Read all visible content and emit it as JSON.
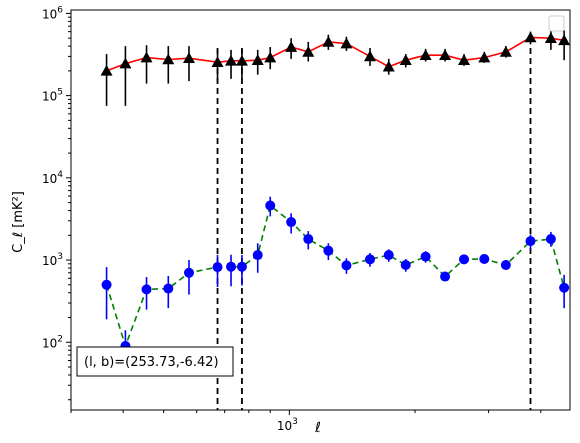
{
  "chart_data": {
    "type": "scatter",
    "title": "",
    "xlabel": "ℓ",
    "ylabel": "C_ℓ  [mK²]",
    "xscale": "log",
    "yscale": "log",
    "xlim": [
      300,
      4700
    ],
    "ylim": [
      15,
      1100000
    ],
    "x_tick_labels": [
      "10^3"
    ],
    "y_tick_labels": [
      "10^2",
      "10^3",
      "10^4",
      "10^5",
      "10^6"
    ],
    "annotation": "(l, b)=(253.73,-6.42)",
    "legend": "top-right",
    "grid": false,
    "vertical_lines_x": [
      673,
      770,
      3780
    ],
    "series": [
      {
        "color": "#ff0000",
        "marker": "triangle",
        "marker_color": "#000000",
        "linestyle": "solid",
        "points": [
          {
            "x": 365,
            "y": 200000,
            "lo": 75000,
            "hi": 320000
          },
          {
            "x": 405,
            "y": 245000,
            "lo": 75000,
            "hi": 400000
          },
          {
            "x": 455,
            "y": 290000,
            "lo": 140000,
            "hi": 410000
          },
          {
            "x": 513,
            "y": 275000,
            "lo": 140000,
            "hi": 400000
          },
          {
            "x": 575,
            "y": 285000,
            "lo": 150000,
            "hi": 400000
          },
          {
            "x": 673,
            "y": 255000,
            "lo": 150000,
            "hi": 360000
          },
          {
            "x": 725,
            "y": 265000,
            "lo": 160000,
            "hi": 360000
          },
          {
            "x": 770,
            "y": 265000,
            "lo": 160000,
            "hi": 360000
          },
          {
            "x": 840,
            "y": 270000,
            "lo": 180000,
            "hi": 360000
          },
          {
            "x": 900,
            "y": 290000,
            "lo": 210000,
            "hi": 390000
          },
          {
            "x": 1010,
            "y": 390000,
            "lo": 280000,
            "hi": 500000
          },
          {
            "x": 1110,
            "y": 340000,
            "lo": 260000,
            "hi": 450000
          },
          {
            "x": 1240,
            "y": 450000,
            "lo": 360000,
            "hi": 550000
          },
          {
            "x": 1370,
            "y": 430000,
            "lo": 350000,
            "hi": 520000
          },
          {
            "x": 1560,
            "y": 300000,
            "lo": 230000,
            "hi": 380000
          },
          {
            "x": 1730,
            "y": 225000,
            "lo": 180000,
            "hi": 280000
          },
          {
            "x": 1900,
            "y": 270000,
            "lo": 220000,
            "hi": 320000
          },
          {
            "x": 2120,
            "y": 310000,
            "lo": 260000,
            "hi": 370000
          },
          {
            "x": 2360,
            "y": 310000,
            "lo": 260000,
            "hi": 370000
          },
          {
            "x": 2620,
            "y": 270000,
            "lo": 230000,
            "hi": 320000
          },
          {
            "x": 2930,
            "y": 290000,
            "lo": 250000,
            "hi": 340000
          },
          {
            "x": 3300,
            "y": 340000,
            "lo": 290000,
            "hi": 400000
          },
          {
            "x": 3780,
            "y": 510000,
            "lo": 420000,
            "hi": 600000
          },
          {
            "x": 4230,
            "y": 500000,
            "lo": 360000,
            "hi": 650000
          },
          {
            "x": 4550,
            "y": 470000,
            "lo": 270000,
            "hi": 620000
          }
        ]
      },
      {
        "color": "#008000",
        "marker": "circle",
        "marker_color": "#0000ff",
        "linestyle": "dashed",
        "points": [
          {
            "x": 365,
            "y": 500,
            "lo": 190,
            "hi": 820
          },
          {
            "x": 405,
            "y": 90,
            "lo": 45,
            "hi": 140
          },
          {
            "x": 455,
            "y": 440,
            "lo": 250,
            "hi": 620
          },
          {
            "x": 513,
            "y": 450,
            "lo": 260,
            "hi": 640
          },
          {
            "x": 575,
            "y": 700,
            "lo": 380,
            "hi": 1000
          },
          {
            "x": 673,
            "y": 820,
            "lo": 470,
            "hi": 1150
          },
          {
            "x": 725,
            "y": 830,
            "lo": 480,
            "hi": 1160
          },
          {
            "x": 770,
            "y": 830,
            "lo": 490,
            "hi": 1150
          },
          {
            "x": 840,
            "y": 1150,
            "lo": 700,
            "hi": 1600
          },
          {
            "x": 900,
            "y": 4600,
            "lo": 3400,
            "hi": 5900
          },
          {
            "x": 1010,
            "y": 2900,
            "lo": 2100,
            "hi": 3700
          },
          {
            "x": 1110,
            "y": 1800,
            "lo": 1350,
            "hi": 2250
          },
          {
            "x": 1240,
            "y": 1300,
            "lo": 1000,
            "hi": 1600
          },
          {
            "x": 1370,
            "y": 860,
            "lo": 680,
            "hi": 1050
          },
          {
            "x": 1560,
            "y": 1020,
            "lo": 830,
            "hi": 1220
          },
          {
            "x": 1730,
            "y": 1150,
            "lo": 950,
            "hi": 1350
          },
          {
            "x": 1900,
            "y": 870,
            "lo": 720,
            "hi": 1030
          },
          {
            "x": 2120,
            "y": 1100,
            "lo": 930,
            "hi": 1280
          },
          {
            "x": 2360,
            "y": 630,
            "lo": 560,
            "hi": 720
          },
          {
            "x": 2620,
            "y": 1020,
            "lo": 900,
            "hi": 1150
          },
          {
            "x": 2930,
            "y": 1030,
            "lo": 920,
            "hi": 1160
          },
          {
            "x": 3300,
            "y": 870,
            "lo": 780,
            "hi": 970
          },
          {
            "x": 3780,
            "y": 1700,
            "lo": 1350,
            "hi": 2050
          },
          {
            "x": 4230,
            "y": 1800,
            "lo": 1450,
            "hi": 2200
          },
          {
            "x": 4550,
            "y": 460,
            "lo": 260,
            "hi": 660
          }
        ]
      }
    ]
  }
}
